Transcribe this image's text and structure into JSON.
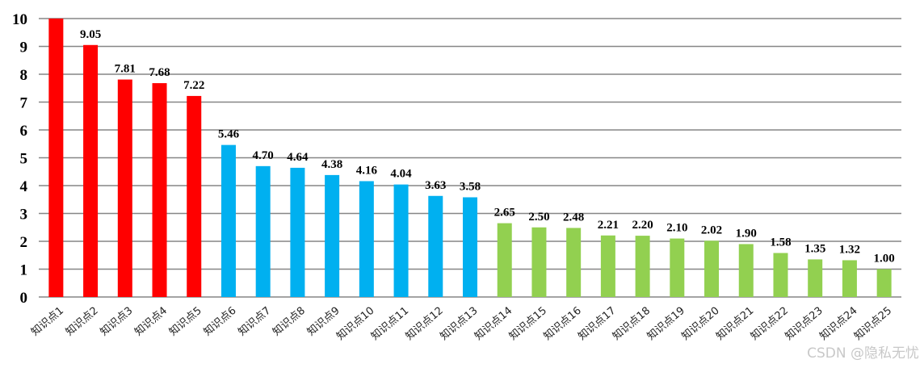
{
  "chart_data": {
    "type": "bar",
    "categories": [
      "知识点1",
      "知识点2",
      "知识点3",
      "知识点4",
      "知识点5",
      "知识点6",
      "知识点7",
      "知识点8",
      "知识点9",
      "知识点10",
      "知识点11",
      "知识点12",
      "知识点13",
      "知识点14",
      "知识点15",
      "知识点16",
      "知识点17",
      "知识点18",
      "知识点19",
      "知识点20",
      "知识点21",
      "知识点22",
      "知识点23",
      "知识点24",
      "知识点25"
    ],
    "values": [
      10.0,
      9.05,
      7.81,
      7.68,
      7.22,
      5.46,
      4.7,
      4.64,
      4.38,
      4.16,
      4.04,
      3.63,
      3.58,
      2.65,
      2.5,
      2.48,
      2.21,
      2.2,
      2.1,
      2.02,
      1.9,
      1.58,
      1.35,
      1.32,
      1.0
    ],
    "data_labels": [
      "",
      "9.05",
      "7.81",
      "7.68",
      "7.22",
      "5.46",
      "4.70",
      "4.64",
      "4.38",
      "4.16",
      "4.04",
      "3.63",
      "3.58",
      "2.65",
      "2.50",
      "2.48",
      "2.21",
      "2.20",
      "2.10",
      "2.02",
      "1.90",
      "1.58",
      "1.35",
      "1.32",
      "1.00"
    ],
    "bar_colors": [
      "#ff0000",
      "#ff0000",
      "#ff0000",
      "#ff0000",
      "#ff0000",
      "#00b0f0",
      "#00b0f0",
      "#00b0f0",
      "#00b0f0",
      "#00b0f0",
      "#00b0f0",
      "#00b0f0",
      "#00b0f0",
      "#92d050",
      "#92d050",
      "#92d050",
      "#92d050",
      "#92d050",
      "#92d050",
      "#92d050",
      "#92d050",
      "#92d050",
      "#92d050",
      "#92d050",
      "#92d050"
    ],
    "ylim": [
      0,
      10
    ],
    "yticks": [
      "0",
      "1",
      "2",
      "3",
      "4",
      "5",
      "6",
      "7",
      "8",
      "9",
      "10"
    ],
    "grid": true,
    "gridline_color": "#868686",
    "title": "",
    "xlabel": "",
    "ylabel": ""
  },
  "watermark": "CSDN @隐私无忧"
}
